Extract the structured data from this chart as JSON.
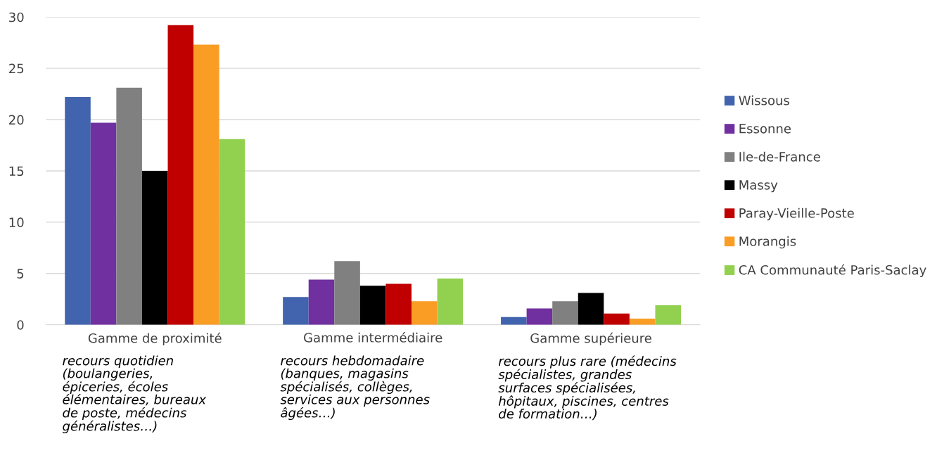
{
  "chart_data": {
    "type": "bar",
    "categories": [
      "Gamme de proximité",
      "Gamme intermédiaire",
      "Gamme supérieure"
    ],
    "series": [
      {
        "name": "Wissous",
        "color": "#4264ae",
        "values": [
          22.2,
          2.7,
          0.75
        ]
      },
      {
        "name": "Essonne",
        "color": "#7030a0",
        "values": [
          19.7,
          4.4,
          1.6
        ]
      },
      {
        "name": "Ile-de-France",
        "color": "#808080",
        "values": [
          23.1,
          6.2,
          2.3
        ]
      },
      {
        "name": "Massy",
        "color": "#000000",
        "values": [
          15.0,
          3.8,
          3.1
        ]
      },
      {
        "name": "Paray-Vieille-Poste",
        "color": "#c00000",
        "values": [
          29.2,
          4.0,
          1.1
        ]
      },
      {
        "name": "Morangis",
        "color": "#f99d25",
        "values": [
          27.3,
          2.3,
          0.6
        ]
      },
      {
        "name": "CA Communauté Paris-Saclay",
        "color": "#92d050",
        "values": [
          18.1,
          4.5,
          1.9
        ]
      }
    ],
    "annotations": [
      "recours quotidien\n(boulangeries,\népiceries, écoles\nélémentaires, bureaux\nde poste, médecins\ngénéralistes…)",
      "recours hebdomadaire\n(banques, magasins\nspécialisés, collèges,\nservices aux personnes\nâgées…)",
      "recours plus rare (médecins\nspécialistes, grandes\nsurfaces spécialisées,\nhôpitaux, piscines, centres\nde formation…)"
    ],
    "ylim": [
      0,
      30
    ],
    "yticks": [
      0,
      5,
      10,
      15,
      20,
      25,
      30
    ],
    "grid": "y",
    "legend": "right"
  }
}
